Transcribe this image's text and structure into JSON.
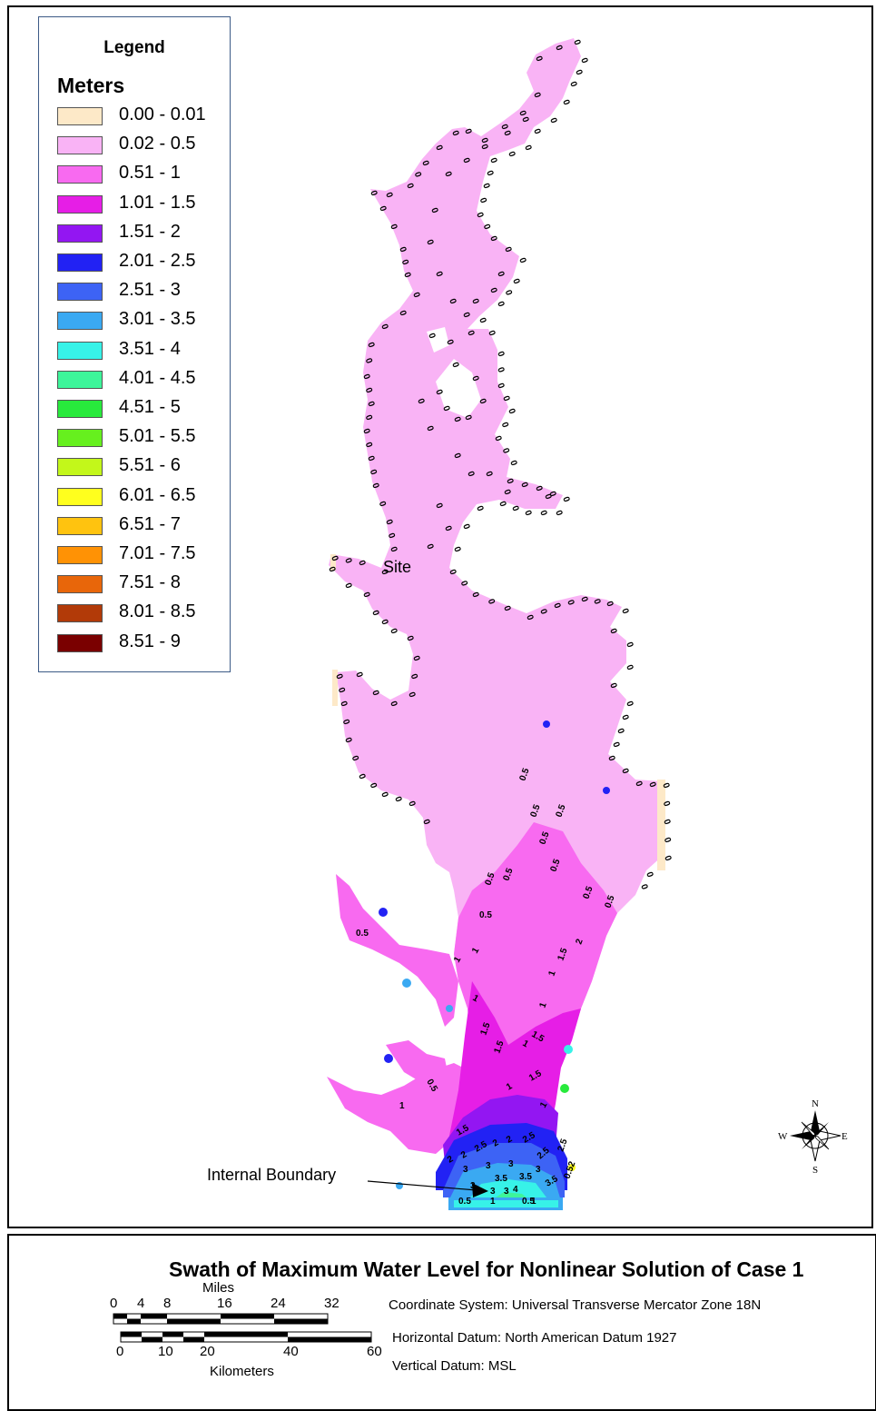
{
  "legend": {
    "title": "Legend",
    "units": "Meters",
    "classes": [
      {
        "label": "0.00 - 0.01",
        "color": "#fde9c8"
      },
      {
        "label": "0.02 - 0.5",
        "color": "#f9b3f5"
      },
      {
        "label": "0.51 - 1",
        "color": "#f86af0"
      },
      {
        "label": "1.01 - 1.5",
        "color": "#e61ee6"
      },
      {
        "label": "1.51 - 2",
        "color": "#9316f2"
      },
      {
        "label": "2.01 - 2.5",
        "color": "#2222f4"
      },
      {
        "label": "2.51 - 3",
        "color": "#3d63f5"
      },
      {
        "label": "3.01 - 3.5",
        "color": "#3aa9f2"
      },
      {
        "label": "3.51 - 4",
        "color": "#37f2e8"
      },
      {
        "label": "4.01 - 4.5",
        "color": "#3df59a"
      },
      {
        "label": "4.51 - 5",
        "color": "#28ea3c"
      },
      {
        "label": "5.01 - 5.5",
        "color": "#66f01e"
      },
      {
        "label": "5.51 - 6",
        "color": "#c3f71a"
      },
      {
        "label": "6.01 - 6.5",
        "color": "#ffff1e"
      },
      {
        "label": "6.51 - 7",
        "color": "#ffc30f"
      },
      {
        "label": "7.01 - 7.5",
        "color": "#ff9205"
      },
      {
        "label": "7.51 - 8",
        "color": "#e8660a"
      },
      {
        "label": "8.01 - 8.5",
        "color": "#b23a08"
      },
      {
        "label": "8.51 - 9",
        "color": "#7a0000"
      }
    ]
  },
  "map": {
    "site_label": "Site",
    "boundary_label": "Internal Boundary",
    "compass": {
      "n": "N",
      "s": "S",
      "e": "E",
      "w": "W",
      "icon": "compass-rose-icon"
    },
    "contour_labels_upper": "0",
    "contour_labels_mid": [
      "0.5",
      "0.5",
      "0.5",
      "0.5",
      "0.5",
      "0.5",
      "0.5",
      "0.5",
      "0.5",
      "0.5",
      "0.5"
    ],
    "contour_labels_lower": [
      "1",
      "1",
      "1",
      "1.5",
      "1.5",
      "1",
      "1.5",
      "1",
      "1",
      "1.5",
      "2",
      "1",
      "1.5",
      "1",
      "0.5",
      "1",
      "1.5"
    ],
    "contour_labels_bay": [
      "2",
      "2",
      "2.5",
      "2",
      "2",
      "2.5",
      "3",
      "3",
      "3",
      "3.5",
      "3.5",
      "3",
      "4",
      "3",
      "3",
      "2.5",
      "3",
      "1",
      "0.5",
      "1",
      "0.5",
      "2.5",
      "0.52",
      "3.5"
    ]
  },
  "title": "Swath of Maximum Water Level for Nonlinear Solution of Case 1",
  "scale_bar": {
    "miles_label": "Miles",
    "miles_ticks": [
      "0",
      "4",
      "8",
      "16",
      "24",
      "32"
    ],
    "km_label": "Kilometers",
    "km_ticks": [
      "0",
      "10",
      "20",
      "40",
      "60"
    ]
  },
  "info": {
    "coordinate_system": "Coordinate System:  Universal Transverse Mercator Zone 18N",
    "horizontal_datum": "Horizontal Datum:  North American Datum 1927",
    "vertical_datum": "Vertical Datum:  MSL"
  }
}
